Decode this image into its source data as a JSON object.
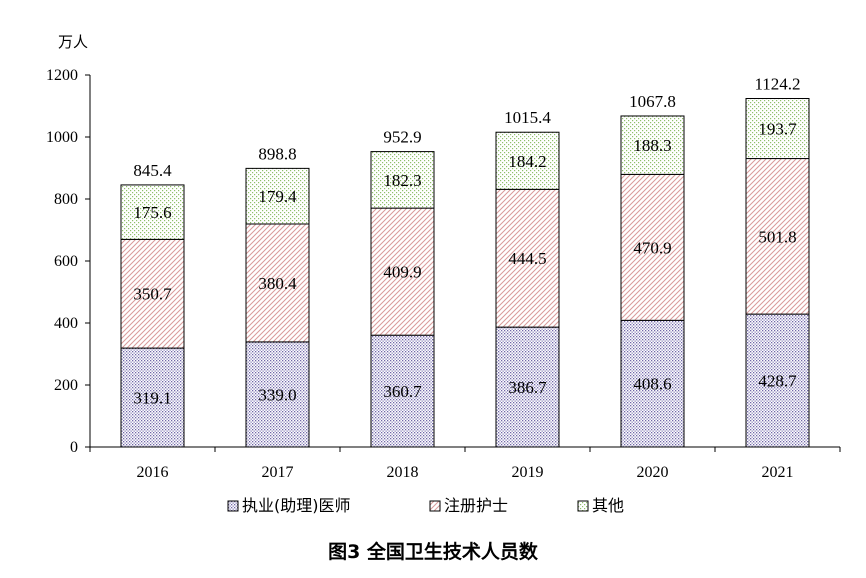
{
  "chart_data": {
    "type": "bar",
    "stacked": true,
    "title": "图3 全国卫生技术人员数",
    "unit_label": "万人",
    "ylim": [
      0,
      1200
    ],
    "yticks": [
      0,
      200,
      400,
      600,
      800,
      1000,
      1200
    ],
    "categories": [
      "2016",
      "2017",
      "2018",
      "2019",
      "2020",
      "2021"
    ],
    "series": [
      {
        "name": "执业(助理)医师",
        "values": [
          "319.1",
          "339.0",
          "360.7",
          "386.7",
          "408.6",
          "428.7"
        ],
        "pattern": "dots-purple"
      },
      {
        "name": "注册护士",
        "values": [
          "350.7",
          "380.4",
          "409.9",
          "444.5",
          "470.9",
          "501.8"
        ],
        "pattern": "hatch-red"
      },
      {
        "name": "其他",
        "values": [
          "175.6",
          "179.4",
          "182.3",
          "184.2",
          "188.3",
          "193.7"
        ],
        "pattern": "dots-green"
      }
    ],
    "totals": [
      "845.4",
      "898.8",
      "952.9",
      "1015.4",
      "1067.8",
      "1124.2"
    ],
    "legend_position": "bottom",
    "grid": false
  }
}
